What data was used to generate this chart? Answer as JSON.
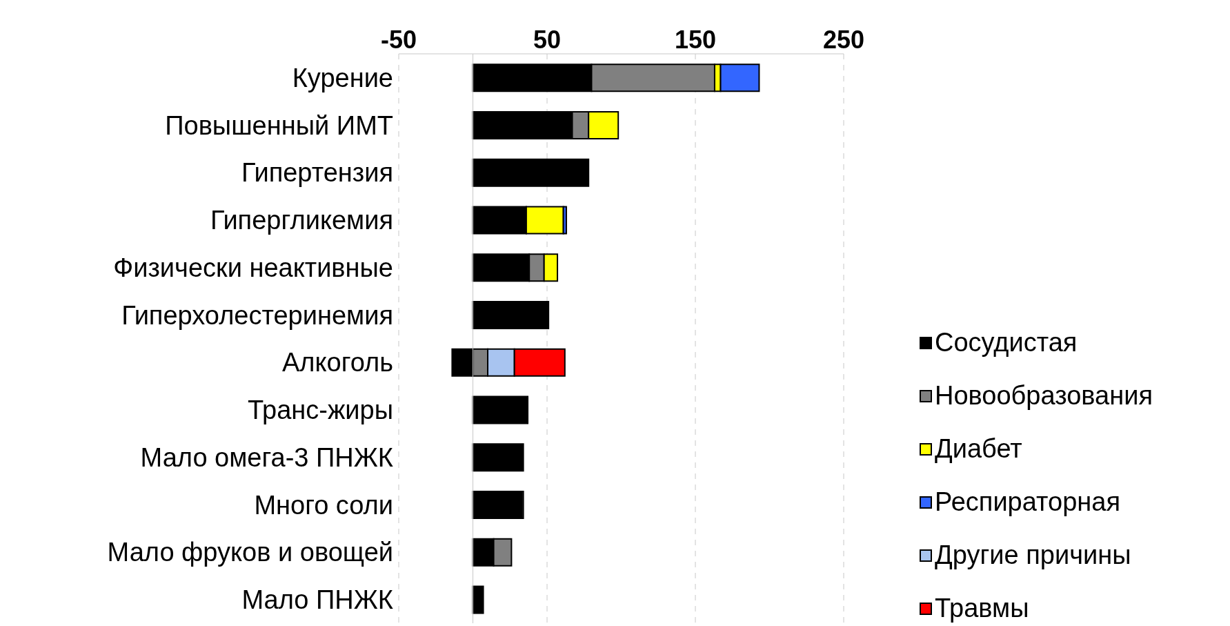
{
  "chart_data": {
    "type": "bar",
    "orientation": "horizontal",
    "stacked": true,
    "categories": [
      "Курение",
      "Повышенный ИМТ",
      "Гипертензия",
      "Гипергликемия",
      "Физически неактивные",
      "Гиперхолестеринемия",
      "Алкоголь",
      "Транс-жиры",
      "Мало омега-3 ПНЖК",
      "Много соли",
      "Мало фруков и овощей",
      "Мало ПНЖК"
    ],
    "series": [
      {
        "name": "Сосудистая",
        "color": "#000000",
        "values": [
          80,
          67,
          78,
          36,
          38,
          51,
          -14,
          37,
          34,
          33,
          14,
          7
        ]
      },
      {
        "name": "Новообразования",
        "color": "#808080",
        "values": [
          83,
          11,
          null,
          null,
          10,
          null,
          10,
          null,
          null,
          1,
          12,
          null
        ]
      },
      {
        "name": "Диабет",
        "color": "#ffff00",
        "values": [
          4,
          20,
          null,
          25,
          9,
          null,
          null,
          null,
          null,
          null,
          null,
          null
        ]
      },
      {
        "name": "Респираторная",
        "color": "#3366ff",
        "values": [
          26,
          null,
          null,
          2,
          null,
          null,
          null,
          null,
          null,
          null,
          null,
          null
        ]
      },
      {
        "name": "Другие причины",
        "color": "#a8c4f0",
        "values": [
          null,
          null,
          null,
          null,
          null,
          null,
          18,
          null,
          null,
          null,
          null,
          null
        ]
      },
      {
        "name": "Травмы",
        "color": "#ff0000",
        "values": [
          null,
          null,
          null,
          null,
          null,
          null,
          34,
          null,
          null,
          null,
          null,
          null
        ]
      }
    ],
    "xlim": [
      -50,
      250
    ],
    "xticks": [
      -50,
      50,
      150,
      250
    ],
    "grid": "x",
    "legend": "right",
    "ref_lines": [
      {
        "axis": "x",
        "value": 0
      }
    ]
  }
}
